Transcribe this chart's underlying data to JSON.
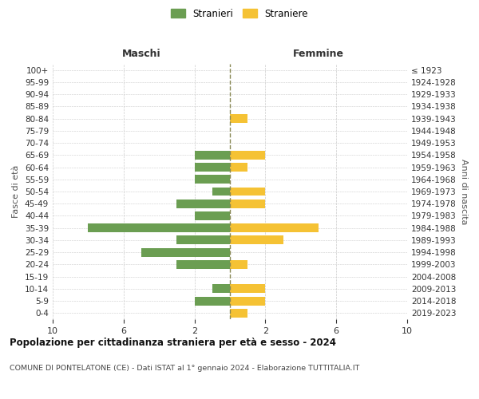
{
  "age_groups": [
    "0-4",
    "5-9",
    "10-14",
    "15-19",
    "20-24",
    "25-29",
    "30-34",
    "35-39",
    "40-44",
    "45-49",
    "50-54",
    "55-59",
    "60-64",
    "65-69",
    "70-74",
    "75-79",
    "80-84",
    "85-89",
    "90-94",
    "95-99",
    "100+"
  ],
  "birth_years": [
    "2019-2023",
    "2014-2018",
    "2009-2013",
    "2004-2008",
    "1999-2003",
    "1994-1998",
    "1989-1993",
    "1984-1988",
    "1979-1983",
    "1974-1978",
    "1969-1973",
    "1964-1968",
    "1959-1963",
    "1954-1958",
    "1949-1953",
    "1944-1948",
    "1939-1943",
    "1934-1938",
    "1929-1933",
    "1924-1928",
    "≤ 1923"
  ],
  "maschi": [
    0,
    2,
    1,
    0,
    3,
    5,
    3,
    8,
    2,
    3,
    1,
    2,
    2,
    2,
    0,
    0,
    0,
    0,
    0,
    0,
    0
  ],
  "femmine": [
    1,
    2,
    2,
    0,
    1,
    0,
    3,
    5,
    0,
    2,
    2,
    0,
    1,
    2,
    0,
    0,
    1,
    0,
    0,
    0,
    0
  ],
  "color_maschi": "#6b9e52",
  "color_femmine": "#f5c234",
  "xlim": 10,
  "header_left": "Maschi",
  "header_right": "Femmine",
  "ylabel_left": "Fasce di età",
  "ylabel_right": "Anni di nascita",
  "title": "Popolazione per cittadinanza straniera per età e sesso - 2024",
  "subtitle": "COMUNE DI PONTELATONE (CE) - Dati ISTAT al 1° gennaio 2024 - Elaborazione TUTTITALIA.IT",
  "legend_maschi": "Stranieri",
  "legend_femmine": "Straniere",
  "bg_color": "#ffffff",
  "grid_color": "#cccccc",
  "center_line_color": "#888855"
}
